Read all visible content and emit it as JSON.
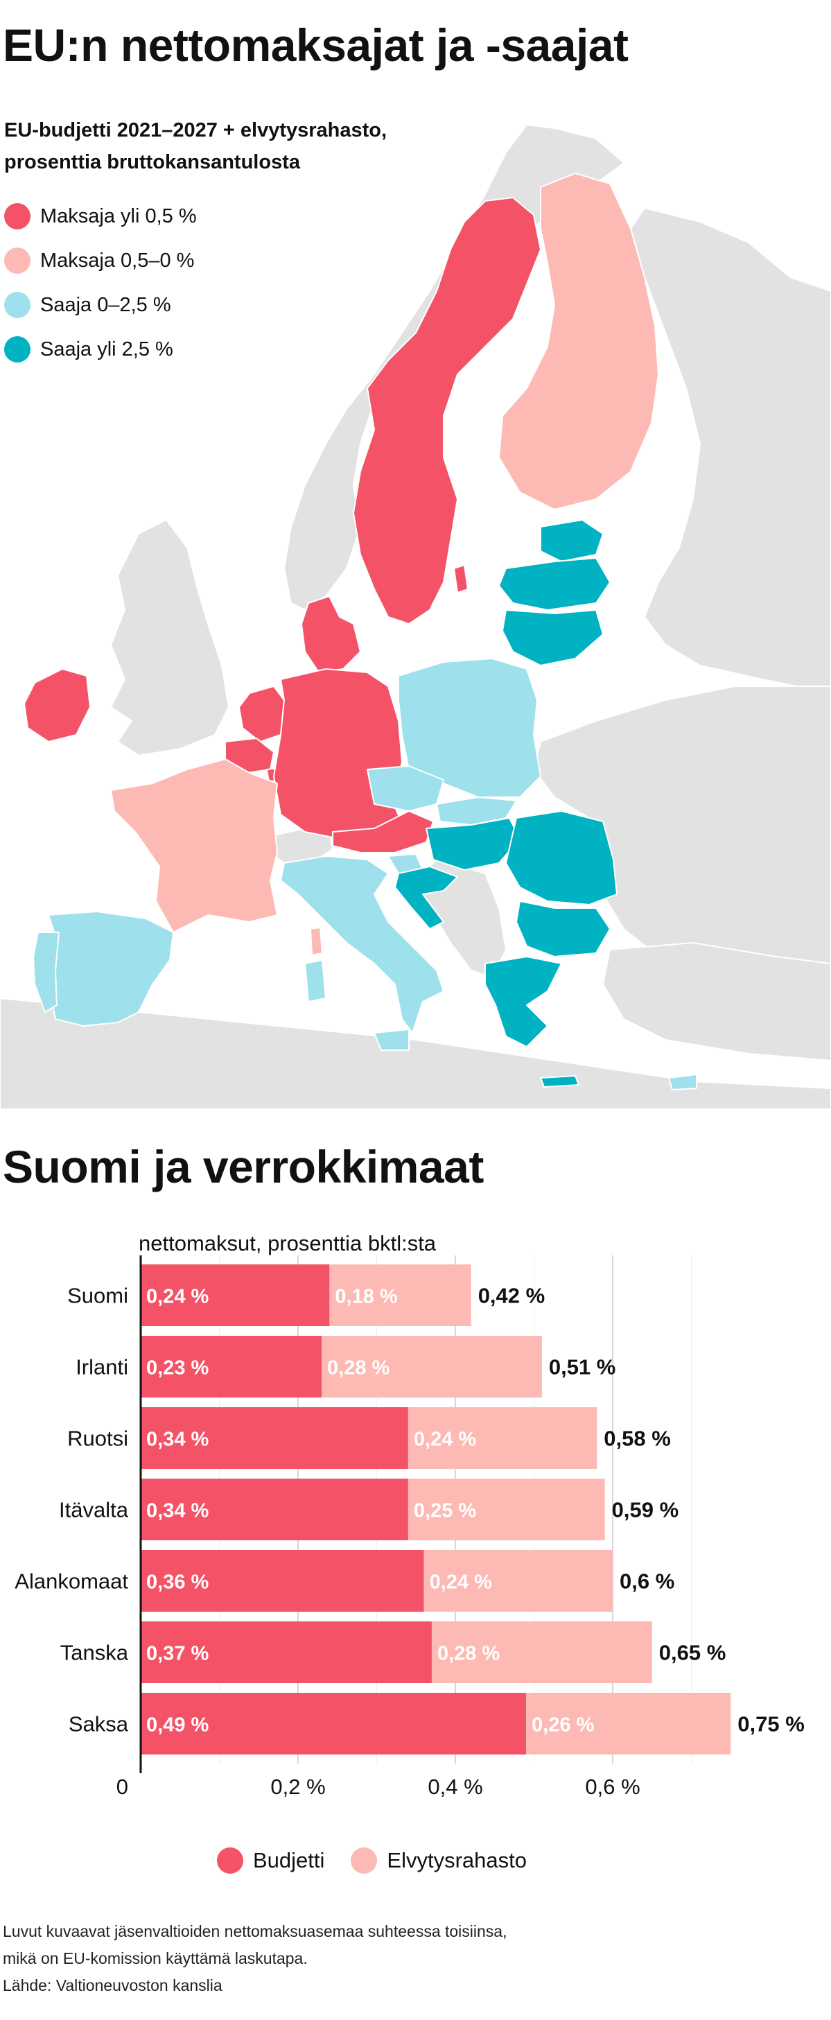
{
  "map_section": {
    "title": "EU:n nettomaksajat ja -saajat",
    "subtitle_line1": "EU-budjetti 2021–2027 + elvytysrahasto,",
    "subtitle_line2": "prosenttia bruttokansantulosta",
    "legend": [
      {
        "label": "Maksaja yli 0,5 %",
        "color": "#f45266"
      },
      {
        "label": "Maksaja 0,5–0 %",
        "color": "#fdbab4"
      },
      {
        "label": "Saaja 0–2,5 %",
        "color": "#9ee0ec"
      },
      {
        "label": "Saaja yli 2,5 %",
        "color": "#00b2c2"
      }
    ],
    "non_eu_color": "#e2e2e2"
  },
  "chart_section": {
    "title": "Suomi ja verrokkimaat",
    "unit_caption": "nettomaksut, prosenttia bktl:sta",
    "legend": [
      {
        "label": "Budjetti",
        "color": "#f45266"
      },
      {
        "label": "Elvytysrahasto",
        "color": "#fdbab4"
      }
    ]
  },
  "chart_data": {
    "type": "bar",
    "orientation": "horizontal",
    "stacked": true,
    "title": "Suomi ja verrokkimaat",
    "xlabel": "nettomaksut, prosenttia bktl:sta",
    "categories": [
      "Suomi",
      "Irlanti",
      "Ruotsi",
      "Itävalta",
      "Alankomaat",
      "Tanska",
      "Saksa"
    ],
    "series": [
      {
        "name": "Budjetti",
        "color": "#f45266",
        "values": [
          0.24,
          0.23,
          0.34,
          0.34,
          0.36,
          0.37,
          0.49
        ],
        "labels": [
          "0,24 %",
          "0,23 %",
          "0,34 %",
          "0,34 %",
          "0,36 %",
          "0,37 %",
          "0,49 %"
        ]
      },
      {
        "name": "Elvytysrahasto",
        "color": "#fdbab4",
        "values": [
          0.18,
          0.28,
          0.24,
          0.25,
          0.24,
          0.28,
          0.26
        ],
        "labels": [
          "0,18 %",
          "0,28 %",
          "0,24 %",
          "0,25 %",
          "0,24 %",
          "0,28 %",
          "0,26 %"
        ]
      }
    ],
    "totals": [
      0.42,
      0.51,
      0.58,
      0.59,
      0.6,
      0.65,
      0.75
    ],
    "total_labels": [
      "0,42 %",
      "0,51 %",
      "0,58 %",
      "0,59 %",
      "0,6 %",
      "0,65 %",
      "0,75 %"
    ],
    "xticks": [
      0,
      0.2,
      0.4,
      0.6
    ],
    "xtick_labels": [
      "0",
      "0,2 %",
      "0,4 %",
      "0,6 %"
    ],
    "xlim": [
      0,
      0.8
    ],
    "grid": true
  },
  "footnote_line1": "Luvut kuvaavat jäsenvaltioiden nettomaksuasemaa suhteessa toisiinsa,",
  "footnote_line2": "mikä on EU-komission käyttämä laskutapa.",
  "source": "Lähde: Valtioneuvoston kanslia"
}
